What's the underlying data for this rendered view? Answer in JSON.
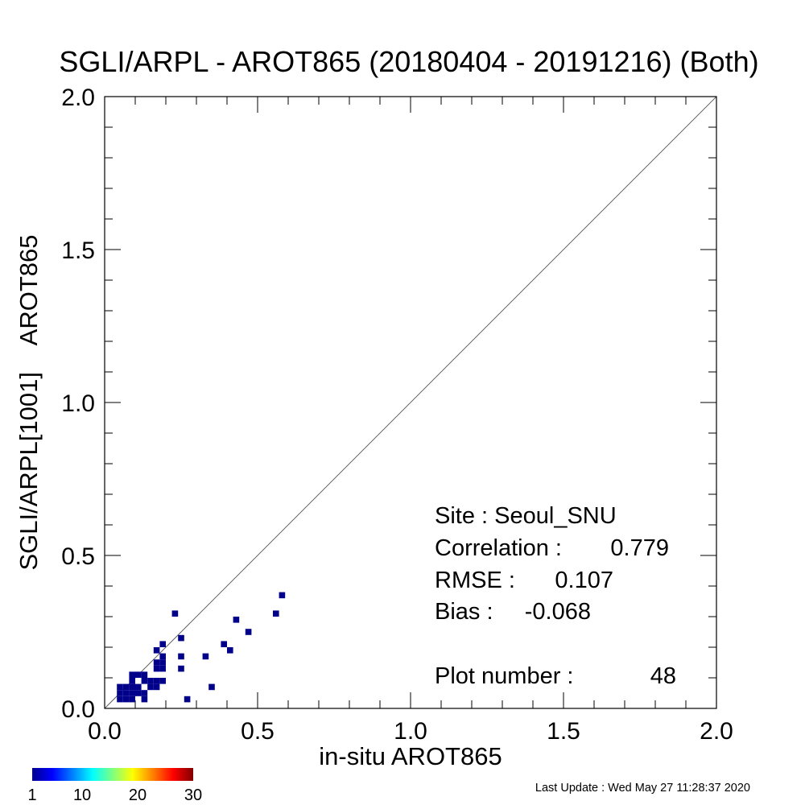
{
  "chart_data": {
    "type": "scatter",
    "title": "SGLI/ARPL - AROT865 (20180404 - 20191216) (Both)",
    "xlabel": "in-situ AROT865",
    "ylabel": "SGLI/ARPL[1001]    AROT865",
    "xlim": [
      0.0,
      2.0
    ],
    "ylim": [
      0.0,
      2.0
    ],
    "xticks": [
      "0.0",
      "0.5",
      "1.0",
      "1.5",
      "2.0"
    ],
    "yticks": [
      "0.0",
      "0.5",
      "1.0",
      "1.5",
      "2.0"
    ],
    "grid": false,
    "one_to_one_line": true,
    "stats": {
      "site": "Site : Seoul_SNU",
      "correlation_label": "Correlation :",
      "correlation_value": "0.779",
      "rmse_label": "RMSE :",
      "rmse_value": "0.107",
      "bias_label": "Bias :",
      "bias_value": "-0.068",
      "plot_number_label": "Plot number :",
      "plot_number_value": "48"
    },
    "colorbar": {
      "ticks": [
        "1",
        "10",
        "20",
        "30"
      ],
      "min": 1,
      "max": 30
    },
    "point_color": "#00008b",
    "points": [
      [
        0.05,
        0.03
      ],
      [
        0.07,
        0.03
      ],
      [
        0.09,
        0.03
      ],
      [
        0.13,
        0.03
      ],
      [
        0.27,
        0.03
      ],
      [
        0.05,
        0.05
      ],
      [
        0.07,
        0.05
      ],
      [
        0.09,
        0.05
      ],
      [
        0.11,
        0.05
      ],
      [
        0.13,
        0.05
      ],
      [
        0.05,
        0.07
      ],
      [
        0.07,
        0.07
      ],
      [
        0.09,
        0.07
      ],
      [
        0.11,
        0.07
      ],
      [
        0.15,
        0.07
      ],
      [
        0.17,
        0.07
      ],
      [
        0.35,
        0.07
      ],
      [
        0.09,
        0.09
      ],
      [
        0.13,
        0.09
      ],
      [
        0.15,
        0.09
      ],
      [
        0.17,
        0.09
      ],
      [
        0.19,
        0.09
      ],
      [
        0.09,
        0.11
      ],
      [
        0.11,
        0.11
      ],
      [
        0.13,
        0.11
      ],
      [
        0.17,
        0.13
      ],
      [
        0.19,
        0.13
      ],
      [
        0.25,
        0.13
      ],
      [
        0.17,
        0.15
      ],
      [
        0.19,
        0.15
      ],
      [
        0.19,
        0.17
      ],
      [
        0.25,
        0.17
      ],
      [
        0.33,
        0.17
      ],
      [
        0.17,
        0.19
      ],
      [
        0.41,
        0.19
      ],
      [
        0.19,
        0.21
      ],
      [
        0.39,
        0.21
      ],
      [
        0.25,
        0.23
      ],
      [
        0.47,
        0.25
      ],
      [
        0.43,
        0.29
      ],
      [
        0.23,
        0.31
      ],
      [
        0.56,
        0.31
      ],
      [
        0.58,
        0.37
      ]
    ]
  },
  "footer": {
    "last_update": "Last Update : Wed May 27 11:28:37 2020"
  }
}
